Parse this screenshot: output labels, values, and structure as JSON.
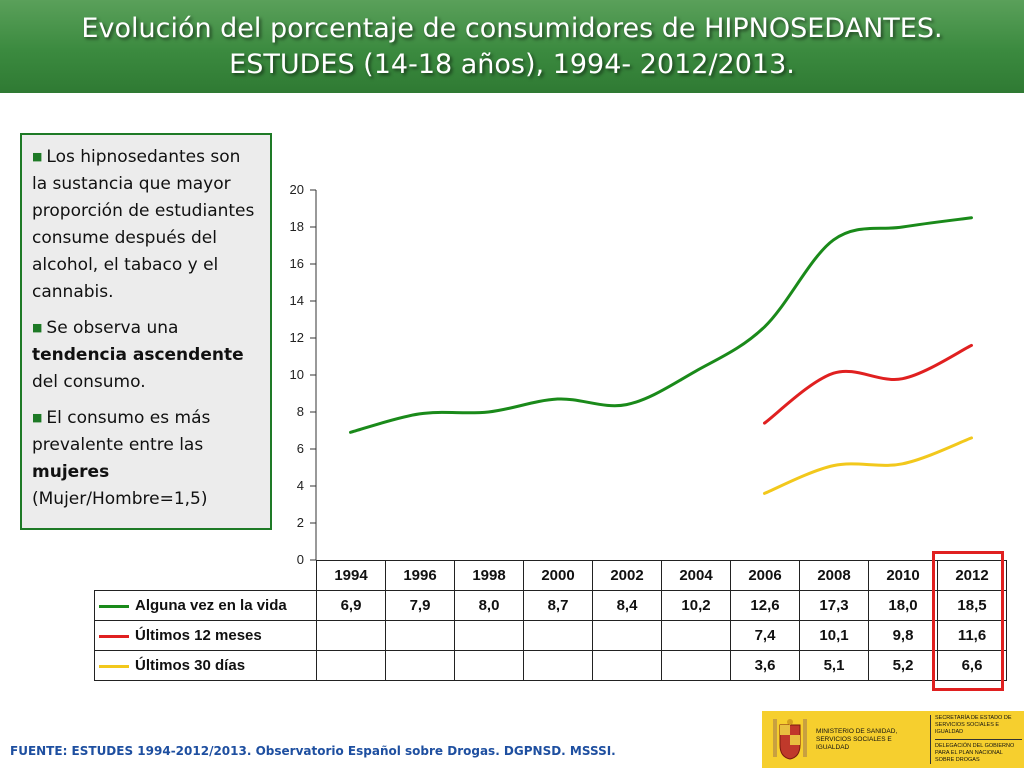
{
  "header": {
    "title_line1": "Evolución del porcentaje de consumidores de HIPNOSEDANTES.",
    "title_line2": "ESTUDES (14-18 años), 1994- 2012/2013."
  },
  "info_box": {
    "p1": "Los hipnosedantes son la sustancia que mayor proporción de estudiantes consume después del alcohol, el tabaco y el cannabis.",
    "p2_pre": "Se observa una ",
    "p2_bold": "tendencia ascendente",
    "p2_post": " del consumo.",
    "p3_pre": "El consumo es más prevalente entre las ",
    "p3_bold": "mujeres",
    "p3_post": " (Mujer/Hombre=1,5)"
  },
  "chart_data": {
    "type": "line",
    "categories": [
      "1994",
      "1996",
      "1998",
      "2000",
      "2002",
      "2004",
      "2006",
      "2008",
      "2010",
      "2012"
    ],
    "ylim": [
      0,
      20
    ],
    "yticks": [
      "0",
      "2",
      "4",
      "6",
      "8",
      "10",
      "12",
      "14",
      "16",
      "18",
      "20"
    ],
    "series": [
      {
        "name": "Alguna vez en la vida",
        "color": "#1a8a1a",
        "values": [
          6.9,
          7.9,
          8.0,
          8.7,
          8.4,
          10.2,
          12.6,
          17.3,
          18.0,
          18.5
        ],
        "labels": [
          "6,9",
          "7,9",
          "8,0",
          "8,7",
          "8,4",
          "10,2",
          "12,6",
          "17,3",
          "18,0",
          "18,5"
        ]
      },
      {
        "name": "Últimos 12 meses",
        "color": "#e02020",
        "values": [
          null,
          null,
          null,
          null,
          null,
          null,
          7.4,
          10.1,
          9.8,
          11.6
        ],
        "labels": [
          "",
          "",
          "",
          "",
          "",
          "",
          "7,4",
          "10,1",
          "9,8",
          "11,6"
        ]
      },
      {
        "name": "Últimos 30 días",
        "color": "#f2c81c",
        "values": [
          null,
          null,
          null,
          null,
          null,
          null,
          3.6,
          5.1,
          5.2,
          6.6
        ],
        "labels": [
          "",
          "",
          "",
          "",
          "",
          "",
          "3,6",
          "5,1",
          "5,2",
          "6,6"
        ]
      }
    ]
  },
  "footer": {
    "source": "FUENTE: ESTUDES 1994-2012/2013. Observatorio Español sobre Drogas. DGPNSD. MSSSI."
  },
  "logo": {
    "ministry": "Ministerio de Sanidad, Servicios Sociales e Igualdad",
    "secretaria": "Secretaría de Estado de Servicios Sociales e Igualdad",
    "delegacion": "Delegación del Gobierno para el Plan Nacional sobre Drogas",
    "background": "#f6cf2e"
  }
}
